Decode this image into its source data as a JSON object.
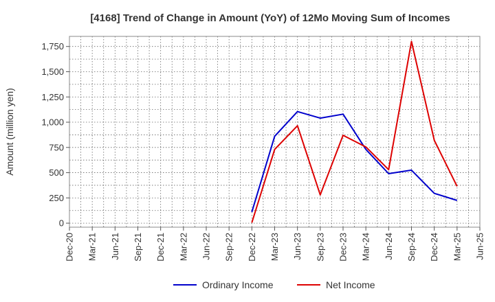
{
  "chart_data": {
    "type": "line",
    "title": "[4168]  Trend of Change in Amount (YoY) of 12Mo Moving Sum of Incomes",
    "ylabel": "Amount (million yen)",
    "xlabel": "",
    "ylim": [
      -40,
      1850
    ],
    "yticks": [
      0,
      250,
      500,
      750,
      1000,
      1250,
      1500,
      1750
    ],
    "ytick_labels": [
      "0",
      "250",
      "500",
      "750",
      "1,000",
      "1,250",
      "1,500",
      "1,750"
    ],
    "x_labels": [
      "Dec-20",
      "Mar-21",
      "Jun-21",
      "Sep-21",
      "Dec-21",
      "Mar-22",
      "Jun-22",
      "Sep-22",
      "Dec-22",
      "Mar-23",
      "Jun-23",
      "Sep-23",
      "Dec-23",
      "Mar-24",
      "Jun-24",
      "Sep-24",
      "Dec-24",
      "Mar-25",
      "Jun-25"
    ],
    "grid": true,
    "legend_position": "bottom-center",
    "series": [
      {
        "name": "Ordinary Income",
        "color": "#0000cc",
        "x": [
          "Dec-22",
          "Mar-23",
          "Jun-23",
          "Sep-23",
          "Dec-23",
          "Mar-24",
          "Jun-24",
          "Sep-24",
          "Dec-24",
          "Mar-25"
        ],
        "values": [
          110,
          860,
          1105,
          1040,
          1080,
          730,
          490,
          525,
          295,
          225
        ]
      },
      {
        "name": "Net Income",
        "color": "#dd0000",
        "x": [
          "Dec-22",
          "Mar-23",
          "Jun-23",
          "Sep-23",
          "Dec-23",
          "Mar-24",
          "Jun-24",
          "Sep-24",
          "Dec-24",
          "Mar-25"
        ],
        "values": [
          5,
          730,
          965,
          280,
          870,
          755,
          530,
          1800,
          820,
          365
        ]
      }
    ]
  }
}
